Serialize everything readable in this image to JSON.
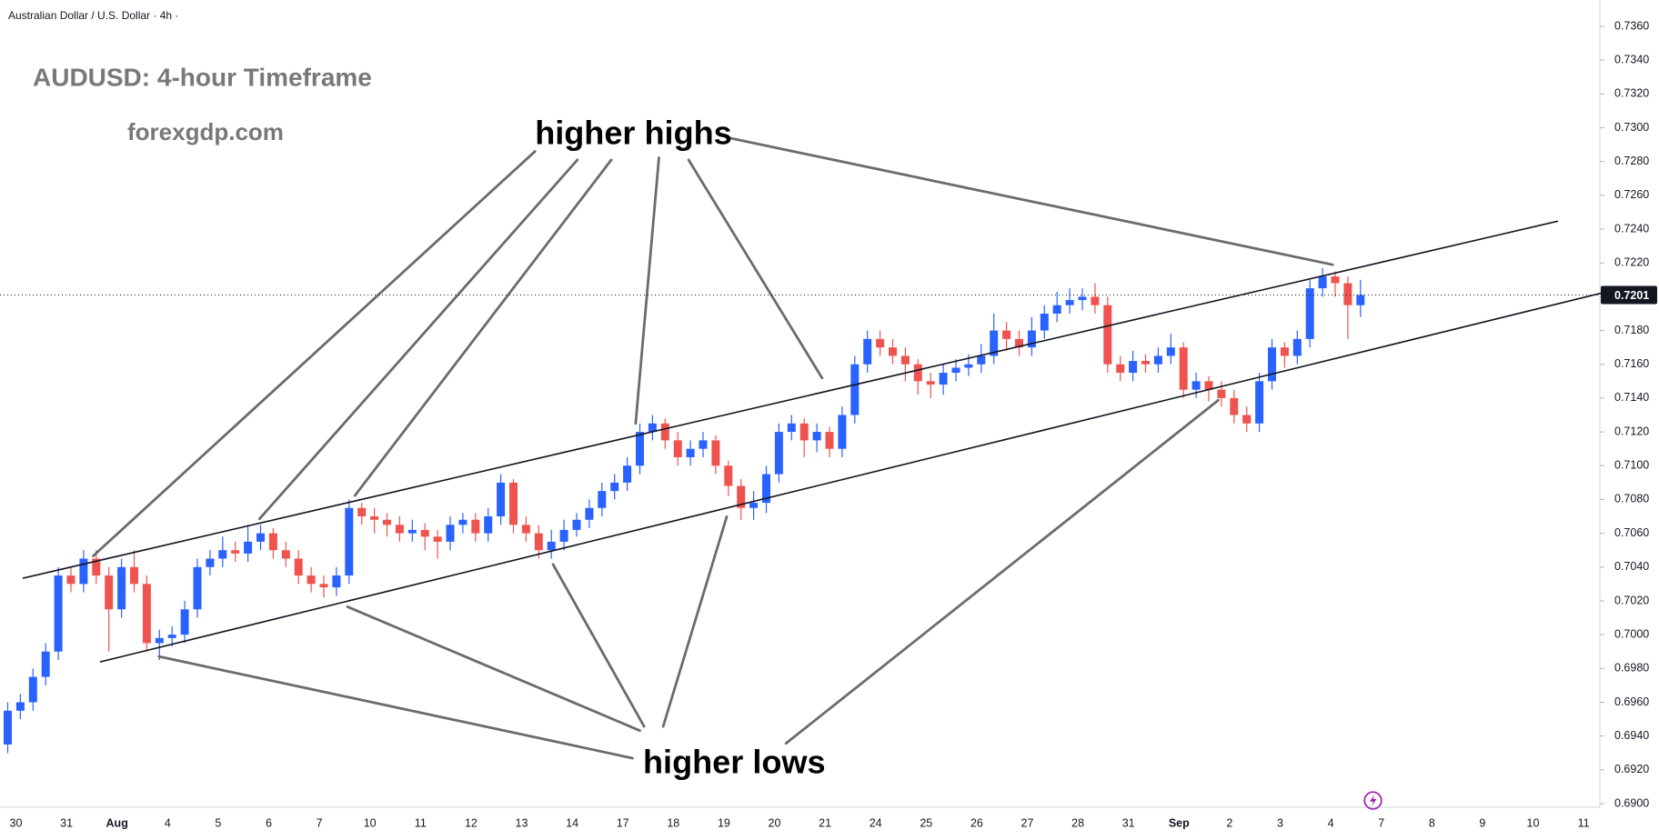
{
  "chart_data": {
    "type": "candlestick",
    "header": "Australian Dollar / U.S. Dollar · 4h ·",
    "title": "AUDUSD: 4-hour Timeframe",
    "subtitle": "forexgdp.com",
    "annotations": [
      "higher highs",
      "higher lows"
    ],
    "up_color": "#2962ff",
    "down_color": "#ef5350",
    "x_labels": [
      "30",
      "31",
      "Aug",
      "4",
      "5",
      "6",
      "7",
      "10",
      "11",
      "12",
      "13",
      "14",
      "17",
      "18",
      "19",
      "20",
      "21",
      "24",
      "25",
      "26",
      "27",
      "28",
      "31",
      "Sep",
      "2",
      "3",
      "4",
      "7",
      "8",
      "9",
      "10",
      "11"
    ],
    "candles_per_label": 4,
    "candles": [
      [
        0.6935,
        0.696,
        0.693,
        0.6955
      ],
      [
        0.6955,
        0.6965,
        0.695,
        0.696
      ],
      [
        0.696,
        0.698,
        0.6955,
        0.6975
      ],
      [
        0.6975,
        0.6995,
        0.697,
        0.699
      ],
      [
        0.699,
        0.704,
        0.6985,
        0.7035
      ],
      [
        0.7035,
        0.704,
        0.7025,
        0.703
      ],
      [
        0.703,
        0.705,
        0.7025,
        0.7045
      ],
      [
        0.7045,
        0.705,
        0.703,
        0.7035
      ],
      [
        0.7035,
        0.704,
        0.699,
        0.7015
      ],
      [
        0.7015,
        0.7045,
        0.701,
        0.704
      ],
      [
        0.704,
        0.705,
        0.7025,
        0.703
      ],
      [
        0.703,
        0.7035,
        0.699,
        0.6995
      ],
      [
        0.6995,
        0.7003,
        0.6985,
        0.6998
      ],
      [
        0.6998,
        0.7005,
        0.6993,
        0.7
      ],
      [
        0.7,
        0.702,
        0.6995,
        0.7015
      ],
      [
        0.7015,
        0.7045,
        0.701,
        0.704
      ],
      [
        0.704,
        0.705,
        0.7035,
        0.7045
      ],
      [
        0.7045,
        0.7058,
        0.704,
        0.705
      ],
      [
        0.705,
        0.7055,
        0.7043,
        0.7048
      ],
      [
        0.7048,
        0.7065,
        0.7043,
        0.7055
      ],
      [
        0.7055,
        0.7065,
        0.705,
        0.706
      ],
      [
        0.706,
        0.7063,
        0.7045,
        0.705
      ],
      [
        0.705,
        0.7055,
        0.704,
        0.7045
      ],
      [
        0.7045,
        0.705,
        0.703,
        0.7035
      ],
      [
        0.7035,
        0.704,
        0.7025,
        0.703
      ],
      [
        0.703,
        0.7035,
        0.7022,
        0.7028
      ],
      [
        0.7028,
        0.704,
        0.7023,
        0.7035
      ],
      [
        0.7035,
        0.708,
        0.703,
        0.7075
      ],
      [
        0.7075,
        0.7078,
        0.7065,
        0.707
      ],
      [
        0.707,
        0.7075,
        0.706,
        0.7068
      ],
      [
        0.7068,
        0.7072,
        0.7058,
        0.7065
      ],
      [
        0.7065,
        0.707,
        0.7055,
        0.706
      ],
      [
        0.706,
        0.7068,
        0.7055,
        0.7062
      ],
      [
        0.7062,
        0.7066,
        0.705,
        0.7058
      ],
      [
        0.7058,
        0.7062,
        0.7045,
        0.7055
      ],
      [
        0.7055,
        0.707,
        0.705,
        0.7065
      ],
      [
        0.7065,
        0.7072,
        0.706,
        0.7068
      ],
      [
        0.7068,
        0.7072,
        0.7055,
        0.706
      ],
      [
        0.706,
        0.7075,
        0.7055,
        0.707
      ],
      [
        0.707,
        0.7095,
        0.7065,
        0.709
      ],
      [
        0.709,
        0.7092,
        0.706,
        0.7065
      ],
      [
        0.7065,
        0.707,
        0.7055,
        0.706
      ],
      [
        0.706,
        0.7065,
        0.7045,
        0.705
      ],
      [
        0.705,
        0.7062,
        0.7045,
        0.7055
      ],
      [
        0.7055,
        0.7068,
        0.705,
        0.7062
      ],
      [
        0.7062,
        0.7072,
        0.7058,
        0.7068
      ],
      [
        0.7068,
        0.708,
        0.7063,
        0.7075
      ],
      [
        0.7075,
        0.709,
        0.707,
        0.7085
      ],
      [
        0.7085,
        0.7095,
        0.708,
        0.709
      ],
      [
        0.709,
        0.7105,
        0.7085,
        0.71
      ],
      [
        0.71,
        0.7125,
        0.7095,
        0.712
      ],
      [
        0.712,
        0.713,
        0.7115,
        0.7125
      ],
      [
        0.7125,
        0.7128,
        0.711,
        0.7115
      ],
      [
        0.7115,
        0.712,
        0.71,
        0.7105
      ],
      [
        0.7105,
        0.7115,
        0.71,
        0.711
      ],
      [
        0.711,
        0.712,
        0.7105,
        0.7115
      ],
      [
        0.7115,
        0.7118,
        0.7095,
        0.71
      ],
      [
        0.71,
        0.7103,
        0.7082,
        0.7088
      ],
      [
        0.7088,
        0.7092,
        0.7068,
        0.7075
      ],
      [
        0.7075,
        0.7085,
        0.7068,
        0.7078
      ],
      [
        0.7078,
        0.71,
        0.7072,
        0.7095
      ],
      [
        0.7095,
        0.7125,
        0.709,
        0.712
      ],
      [
        0.712,
        0.713,
        0.7115,
        0.7125
      ],
      [
        0.7125,
        0.7128,
        0.7105,
        0.7115
      ],
      [
        0.7115,
        0.7125,
        0.7108,
        0.712
      ],
      [
        0.712,
        0.7123,
        0.7105,
        0.711
      ],
      [
        0.711,
        0.7135,
        0.7105,
        0.713
      ],
      [
        0.713,
        0.7165,
        0.7125,
        0.716
      ],
      [
        0.716,
        0.718,
        0.7155,
        0.7175
      ],
      [
        0.7175,
        0.718,
        0.7165,
        0.717
      ],
      [
        0.717,
        0.7175,
        0.716,
        0.7165
      ],
      [
        0.7165,
        0.717,
        0.715,
        0.716
      ],
      [
        0.716,
        0.7163,
        0.7142,
        0.715
      ],
      [
        0.715,
        0.7155,
        0.714,
        0.7148
      ],
      [
        0.7148,
        0.716,
        0.7142,
        0.7155
      ],
      [
        0.7155,
        0.7163,
        0.715,
        0.7158
      ],
      [
        0.7158,
        0.7166,
        0.7153,
        0.716
      ],
      [
        0.716,
        0.7172,
        0.7155,
        0.7165
      ],
      [
        0.7165,
        0.719,
        0.716,
        0.718
      ],
      [
        0.718,
        0.7185,
        0.7168,
        0.7175
      ],
      [
        0.7175,
        0.718,
        0.7165,
        0.717
      ],
      [
        0.717,
        0.7188,
        0.7165,
        0.718
      ],
      [
        0.718,
        0.7195,
        0.7175,
        0.719
      ],
      [
        0.719,
        0.7203,
        0.7185,
        0.7195
      ],
      [
        0.7195,
        0.7205,
        0.719,
        0.7198
      ],
      [
        0.7198,
        0.7205,
        0.7192,
        0.72
      ],
      [
        0.72,
        0.7208,
        0.719,
        0.7195
      ],
      [
        0.7195,
        0.72,
        0.7155,
        0.716
      ],
      [
        0.716,
        0.7165,
        0.715,
        0.7155
      ],
      [
        0.7155,
        0.7168,
        0.715,
        0.7162
      ],
      [
        0.7162,
        0.7166,
        0.7155,
        0.716
      ],
      [
        0.716,
        0.717,
        0.7155,
        0.7165
      ],
      [
        0.7165,
        0.7178,
        0.716,
        0.717
      ],
      [
        0.717,
        0.7173,
        0.714,
        0.7145
      ],
      [
        0.7145,
        0.7155,
        0.714,
        0.715
      ],
      [
        0.715,
        0.7153,
        0.7138,
        0.7145
      ],
      [
        0.7145,
        0.715,
        0.7135,
        0.714
      ],
      [
        0.714,
        0.7145,
        0.7125,
        0.713
      ],
      [
        0.713,
        0.7135,
        0.712,
        0.7125
      ],
      [
        0.7125,
        0.7155,
        0.712,
        0.715
      ],
      [
        0.715,
        0.7175,
        0.7145,
        0.717
      ],
      [
        0.717,
        0.7173,
        0.7158,
        0.7165
      ],
      [
        0.7165,
        0.718,
        0.716,
        0.7175
      ],
      [
        0.7175,
        0.721,
        0.717,
        0.7205
      ],
      [
        0.7205,
        0.7217,
        0.72,
        0.7212
      ],
      [
        0.7212,
        0.7215,
        0.72,
        0.7208
      ],
      [
        0.7208,
        0.7212,
        0.7175,
        0.7195
      ],
      [
        0.7195,
        0.721,
        0.7188,
        0.7201
      ]
    ],
    "last_price": {
      "value": 0.7201,
      "label": "0.7201"
    },
    "ylim": [
      0.69,
      0.736
    ],
    "yticks": [
      {
        "value": 0.69,
        "label": "0.6900"
      },
      {
        "value": 0.692,
        "label": "0.6920"
      },
      {
        "value": 0.694,
        "label": "0.6940"
      },
      {
        "value": 0.696,
        "label": "0.6960"
      },
      {
        "value": 0.698,
        "label": "0.6980"
      },
      {
        "value": 0.7,
        "label": "0.7000"
      },
      {
        "value": 0.702,
        "label": "0.7020"
      },
      {
        "value": 0.704,
        "label": "0.7040"
      },
      {
        "value": 0.706,
        "label": "0.7060"
      },
      {
        "value": 0.708,
        "label": "0.7080"
      },
      {
        "value": 0.71,
        "label": "0.7100"
      },
      {
        "value": 0.712,
        "label": "0.7120"
      },
      {
        "value": 0.714,
        "label": "0.7140"
      },
      {
        "value": 0.716,
        "label": "0.7160"
      },
      {
        "value": 0.718,
        "label": "0.7180"
      },
      {
        "value": 0.72,
        "label": "0.7200"
      },
      {
        "value": 0.722,
        "label": "0.7220"
      },
      {
        "value": 0.724,
        "label": "0.7240"
      },
      {
        "value": 0.726,
        "label": "0.7260"
      },
      {
        "value": 0.728,
        "label": "0.7280"
      },
      {
        "value": 0.73,
        "label": "0.7300"
      },
      {
        "value": 0.732,
        "label": "0.7320"
      },
      {
        "value": 0.734,
        "label": "0.7340"
      },
      {
        "value": 0.736,
        "label": "0.7360"
      }
    ]
  }
}
